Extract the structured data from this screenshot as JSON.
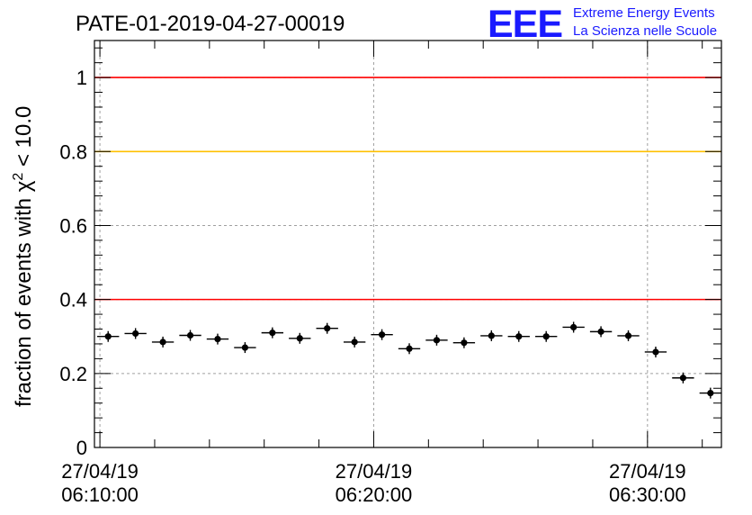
{
  "header": {
    "run_title": "PATE-01-2019-04-27-00019",
    "logo_mark": "EEE",
    "logo_line1": "Extreme Energy Events",
    "logo_line2": "La Scienza nelle Scuole"
  },
  "chart_data": {
    "type": "scatter",
    "title": "PATE-01-2019-04-27-00019",
    "ylabel": "fraction of events with χ² < 10.0",
    "ylabel_parts": {
      "prefix": "fraction of events with χ",
      "sup": "2",
      "suffix": " < 10.0"
    },
    "xlabel": "",
    "x_axis": "time",
    "xlim_minutes": [
      -0.2,
      22.7
    ],
    "ylim": [
      0,
      1.1
    ],
    "yticks": [
      "0",
      "0.2",
      "0.4",
      "0.6",
      "0.8",
      "1"
    ],
    "xticks": [
      {
        "minute": 0,
        "date": "27/04/19",
        "time": "06:10:00"
      },
      {
        "minute": 10,
        "date": "27/04/19",
        "time": "06:20:00"
      },
      {
        "minute": 20,
        "date": "27/04/19",
        "time": "06:30:00"
      }
    ],
    "grid": true,
    "reference_lines": [
      {
        "y": 1.0,
        "color": "#ff0000"
      },
      {
        "y": 0.8,
        "color": "#ffc000"
      },
      {
        "y": 0.4,
        "color": "#ff0000"
      }
    ],
    "bin_width_minutes": 0.8,
    "series": [
      {
        "color": "#000000",
        "x_minutes": [
          0.3,
          1.3,
          2.3,
          3.3,
          4.3,
          5.3,
          6.3,
          7.3,
          8.3,
          9.3,
          10.3,
          11.3,
          12.3,
          13.3,
          14.3,
          15.3,
          16.3,
          17.3,
          18.3,
          19.3,
          20.3,
          21.3,
          22.3
        ],
        "y": [
          0.3,
          0.308,
          0.285,
          0.303,
          0.293,
          0.27,
          0.31,
          0.295,
          0.322,
          0.285,
          0.305,
          0.267,
          0.29,
          0.283,
          0.302,
          0.3,
          0.3,
          0.325,
          0.313,
          0.302,
          0.258,
          0.188,
          0.147
        ]
      }
    ]
  }
}
